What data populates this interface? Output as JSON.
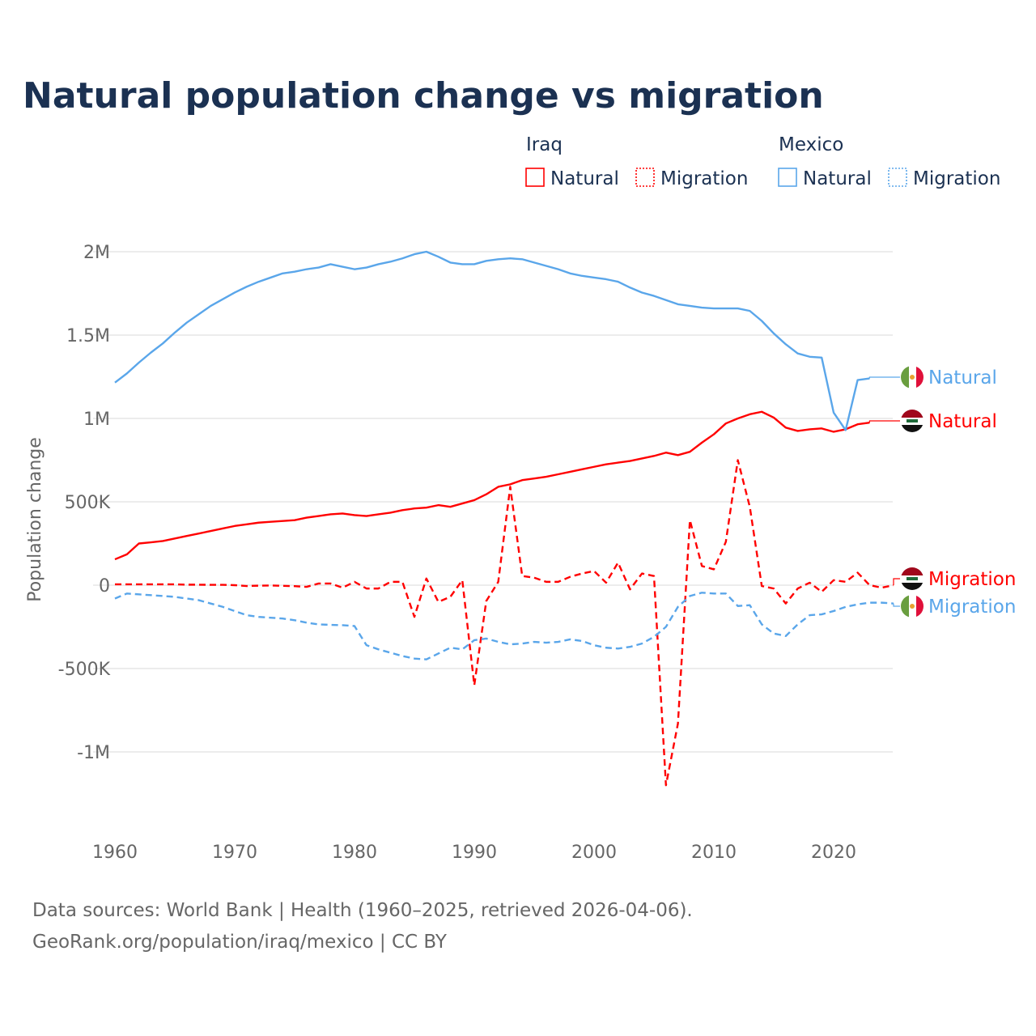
{
  "chart_data": {
    "type": "line",
    "title": "Natural population change vs migration",
    "ylabel": "Population change",
    "xlabel": "",
    "ylim": [
      -1200000,
      2000000
    ],
    "xlim": [
      1960,
      2025
    ],
    "yticks": [
      {
        "v": 2000000,
        "label": "2M"
      },
      {
        "v": 1500000,
        "label": "1.5M"
      },
      {
        "v": 1000000,
        "label": "1M"
      },
      {
        "v": 500000,
        "label": "500K"
      },
      {
        "v": 0,
        "label": "0"
      },
      {
        "v": -500000,
        "label": "-500K"
      },
      {
        "v": -1000000,
        "label": "-1M"
      }
    ],
    "xticks": [
      1960,
      1970,
      1980,
      1990,
      2000,
      2010,
      2020
    ],
    "legend": {
      "groups": [
        {
          "title": "Iraq",
          "items": [
            "Natural",
            "Migration"
          ]
        },
        {
          "title": "Mexico",
          "items": [
            "Natural",
            "Migration"
          ]
        }
      ],
      "placement": "top-right"
    },
    "colors": {
      "iraq": "#ff0000",
      "mexico": "#5aa6ea"
    },
    "start_year": 1960,
    "series": [
      {
        "name": "Iraq Natural",
        "country": "iraq",
        "dash": false,
        "end_label": "Natural",
        "values": [
          155000,
          185000,
          250000,
          257000,
          265000,
          280000,
          295000,
          310000,
          325000,
          340000,
          355000,
          365000,
          375000,
          380000,
          385000,
          390000,
          405000,
          415000,
          425000,
          430000,
          420000,
          415000,
          425000,
          435000,
          450000,
          460000,
          465000,
          480000,
          470000,
          490000,
          510000,
          545000,
          590000,
          605000,
          630000,
          640000,
          650000,
          665000,
          680000,
          695000,
          710000,
          725000,
          735000,
          745000,
          760000,
          775000,
          795000,
          780000,
          800000,
          855000,
          905000,
          970000,
          1000000,
          1025000,
          1040000,
          1005000,
          945000,
          925000,
          935000,
          940000,
          920000,
          935000,
          965000,
          975000
        ]
      },
      {
        "name": "Iraq Migration",
        "country": "iraq",
        "dash": true,
        "end_label": "Migration",
        "values": [
          5000,
          5000,
          5000,
          5000,
          5000,
          5000,
          3000,
          3000,
          2000,
          2000,
          0,
          -5000,
          -3000,
          -2000,
          -4000,
          -6000,
          -10000,
          10000,
          10000,
          -15000,
          20000,
          -20000,
          -20000,
          20000,
          20000,
          -190000,
          40000,
          -100000,
          -70000,
          30000,
          -600000,
          -95000,
          20000,
          590000,
          55000,
          45000,
          20000,
          20000,
          50000,
          70000,
          85000,
          15000,
          135000,
          -25000,
          70000,
          55000,
          -1200000,
          -830000,
          390000,
          115000,
          95000,
          260000,
          750000,
          470000,
          -5000,
          -20000,
          -110000,
          -20000,
          15000,
          -40000,
          30000,
          20000,
          75000,
          0,
          -15000,
          0
        ]
      },
      {
        "name": "Mexico Natural",
        "country": "mexico",
        "dash": false,
        "end_label": "Natural",
        "values": [
          1215000,
          1270000,
          1335000,
          1395000,
          1450000,
          1515000,
          1575000,
          1625000,
          1675000,
          1715000,
          1755000,
          1790000,
          1820000,
          1845000,
          1870000,
          1880000,
          1895000,
          1905000,
          1925000,
          1910000,
          1895000,
          1905000,
          1925000,
          1940000,
          1960000,
          1985000,
          2000000,
          1970000,
          1935000,
          1925000,
          1925000,
          1945000,
          1955000,
          1960000,
          1955000,
          1935000,
          1915000,
          1895000,
          1870000,
          1855000,
          1845000,
          1835000,
          1820000,
          1785000,
          1755000,
          1735000,
          1710000,
          1685000,
          1675000,
          1665000,
          1660000,
          1660000,
          1660000,
          1645000,
          1585000,
          1510000,
          1445000,
          1390000,
          1370000,
          1365000,
          1035000,
          930000,
          1230000,
          1240000
        ]
      },
      {
        "name": "Mexico Migration",
        "country": "mexico",
        "dash": true,
        "end_label": "Migration",
        "values": [
          -80000,
          -50000,
          -55000,
          -60000,
          -65000,
          -70000,
          -80000,
          -90000,
          -110000,
          -130000,
          -155000,
          -180000,
          -190000,
          -195000,
          -200000,
          -210000,
          -225000,
          -235000,
          -238000,
          -240000,
          -245000,
          -360000,
          -385000,
          -405000,
          -425000,
          -440000,
          -445000,
          -410000,
          -375000,
          -385000,
          -330000,
          -320000,
          -340000,
          -355000,
          -350000,
          -340000,
          -345000,
          -340000,
          -325000,
          -335000,
          -360000,
          -375000,
          -380000,
          -370000,
          -350000,
          -310000,
          -250000,
          -130000,
          -65000,
          -45000,
          -50000,
          -50000,
          -125000,
          -120000,
          -235000,
          -290000,
          -305000,
          -235000,
          -180000,
          -175000,
          -155000,
          -130000,
          -115000,
          -105000,
          -105000,
          -110000
        ]
      }
    ]
  },
  "footer": {
    "line1": "Data sources: World Bank | Health (1960–2025, retrieved 2026-04-06).",
    "line2": "GeoRank.org/population/iraq/mexico | CC BY"
  }
}
